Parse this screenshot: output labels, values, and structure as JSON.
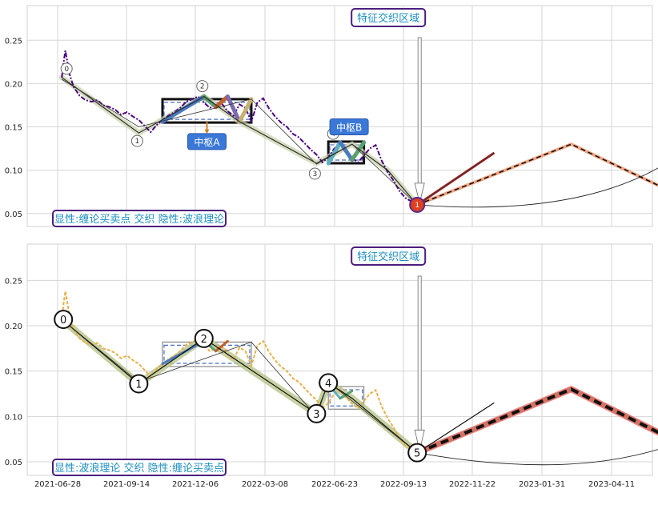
{
  "chart_data": [
    {
      "type": "line",
      "title": "",
      "annotation_top": "特征交织区域",
      "annotation_bottom": "显性:缠论买卖点 交织 隐性:波浪理论",
      "x_ticks": [
        "2021-06-28",
        "2021-09-14",
        "2021-12-06",
        "2022-03-08",
        "2022-06-23",
        "2022-09-13",
        "2022-11-22",
        "2023-01-31",
        "2023-04-11"
      ],
      "y_ticks": [
        "0.05",
        "0.10",
        "0.15",
        "0.20",
        "0.25"
      ],
      "ylim": [
        0.035,
        0.29
      ],
      "grid": true,
      "zs_labels": [
        "中枢A",
        "中枢B"
      ],
      "node_labels": [
        "0",
        "1",
        "2",
        "3",
        "4",
        "1"
      ],
      "series": [
        {
          "role": "price",
          "color": "#4b0082",
          "x": [
            2,
            2.3,
            2.6,
            2.9,
            3.3,
            4,
            5,
            6,
            7,
            8,
            9,
            10,
            11,
            12,
            13,
            14,
            15,
            16,
            17,
            18,
            19,
            20,
            21,
            22,
            23,
            24,
            25,
            26,
            27,
            28,
            29,
            30,
            31,
            32,
            33,
            34,
            35,
            36,
            37,
            38,
            39,
            40,
            41,
            42,
            43,
            44,
            45,
            46,
            47,
            48,
            49,
            50,
            51,
            52,
            53,
            54,
            55,
            56,
            57,
            58,
            59,
            60,
            61,
            62
          ],
          "y": [
            0.207,
            0.224,
            0.238,
            0.227,
            0.211,
            0.196,
            0.186,
            0.181,
            0.179,
            0.181,
            0.175,
            0.173,
            0.17,
            0.164,
            0.167,
            0.162,
            0.158,
            0.151,
            0.144,
            0.152,
            0.158,
            0.163,
            0.167,
            0.172,
            0.179,
            0.182,
            0.185,
            0.178,
            0.172,
            0.175,
            0.177,
            0.168,
            0.163,
            0.176,
            0.172,
            0.156,
            0.178,
            0.183,
            0.171,
            0.162,
            0.155,
            0.15,
            0.142,
            0.138,
            0.131,
            0.124,
            0.118,
            0.109,
            0.115,
            0.125,
            0.13,
            0.121,
            0.114,
            0.109,
            0.117,
            0.125,
            0.129,
            0.111,
            0.098,
            0.088,
            0.076,
            0.068,
            0.064,
            0.06
          ]
        },
        {
          "role": "bi",
          "color": "#2b2b2b",
          "x": [
            2,
            15,
            26,
            32,
            45,
            51,
            57,
            62
          ],
          "y": [
            0.207,
            0.143,
            0.185,
            0.156,
            0.108,
            0.13,
            0.1,
            0.06
          ]
        },
        {
          "role": "bi_projection",
          "color": "#b22222",
          "x": [
            62,
            75
          ],
          "y": [
            0.06,
            0.12
          ]
        },
        {
          "role": "wave_projection",
          "color": "#f4a582",
          "x": [
            62,
            88,
            105,
            123
          ],
          "y": [
            0.06,
            0.13,
            0.075,
            0.145
          ]
        }
      ],
      "pivots": [
        {
          "name": "中枢A",
          "x0": 19,
          "x1": 34,
          "y0": 0.155,
          "y1": 0.182
        },
        {
          "name": "中枢B",
          "x0": 47,
          "x1": 53,
          "y0": 0.108,
          "y1": 0.133
        }
      ]
    },
    {
      "type": "line",
      "title": "",
      "annotation_top": "特征交织区域",
      "annotation_bottom": "显性:波浪理论 交织 隐性:缠论买卖点",
      "x_ticks": [
        "2021-06-28",
        "2021-09-14",
        "2021-12-06",
        "2022-03-08",
        "2022-06-23",
        "2022-09-13",
        "2022-11-22",
        "2023-01-31",
        "2023-04-11"
      ],
      "y_ticks": [
        "0.05",
        "0.10",
        "0.15",
        "0.20",
        "0.25"
      ],
      "ylim": [
        0.035,
        0.29
      ],
      "grid": true,
      "node_labels": [
        "0",
        "1",
        "2",
        "3",
        "4",
        "5"
      ],
      "series": [
        {
          "role": "price",
          "color": "#e8b04a",
          "x": [
            2,
            2.3,
            2.6,
            2.9,
            3.3,
            4,
            5,
            6,
            7,
            8,
            9,
            10,
            11,
            12,
            13,
            14,
            15,
            16,
            17,
            18,
            19,
            20,
            21,
            22,
            23,
            24,
            25,
            26,
            27,
            28,
            29,
            30,
            31,
            32,
            33,
            34,
            35,
            36,
            37,
            38,
            39,
            40,
            41,
            42,
            43,
            44,
            45,
            46,
            47,
            48,
            49,
            50,
            51,
            52,
            53,
            54,
            55,
            56,
            57,
            58,
            59,
            60,
            61,
            62
          ],
          "y": [
            0.207,
            0.224,
            0.238,
            0.227,
            0.211,
            0.196,
            0.186,
            0.181,
            0.179,
            0.181,
            0.175,
            0.173,
            0.17,
            0.164,
            0.167,
            0.162,
            0.158,
            0.151,
            0.144,
            0.152,
            0.158,
            0.163,
            0.167,
            0.172,
            0.179,
            0.182,
            0.185,
            0.178,
            0.172,
            0.175,
            0.177,
            0.168,
            0.163,
            0.176,
            0.172,
            0.156,
            0.178,
            0.183,
            0.171,
            0.162,
            0.155,
            0.15,
            0.142,
            0.138,
            0.131,
            0.124,
            0.118,
            0.109,
            0.115,
            0.125,
            0.13,
            0.121,
            0.114,
            0.109,
            0.117,
            0.125,
            0.129,
            0.111,
            0.098,
            0.088,
            0.076,
            0.068,
            0.064,
            0.06
          ]
        },
        {
          "role": "wave",
          "color": "#111111",
          "x": [
            2,
            15,
            26,
            45,
            47,
            51,
            62
          ],
          "y": [
            0.207,
            0.136,
            0.186,
            0.103,
            0.137,
            0.12,
            0.06
          ]
        },
        {
          "role": "wave_projection",
          "color": "#f08080",
          "x": [
            62,
            88,
            105,
            123
          ],
          "y": [
            0.06,
            0.13,
            0.075,
            0.145
          ]
        }
      ],
      "pivots": [
        {
          "name": "",
          "x0": 19,
          "x1": 34,
          "y0": 0.155,
          "y1": 0.182
        },
        {
          "name": "",
          "x0": 47,
          "x1": 53,
          "y0": 0.108,
          "y1": 0.133
        }
      ]
    }
  ]
}
